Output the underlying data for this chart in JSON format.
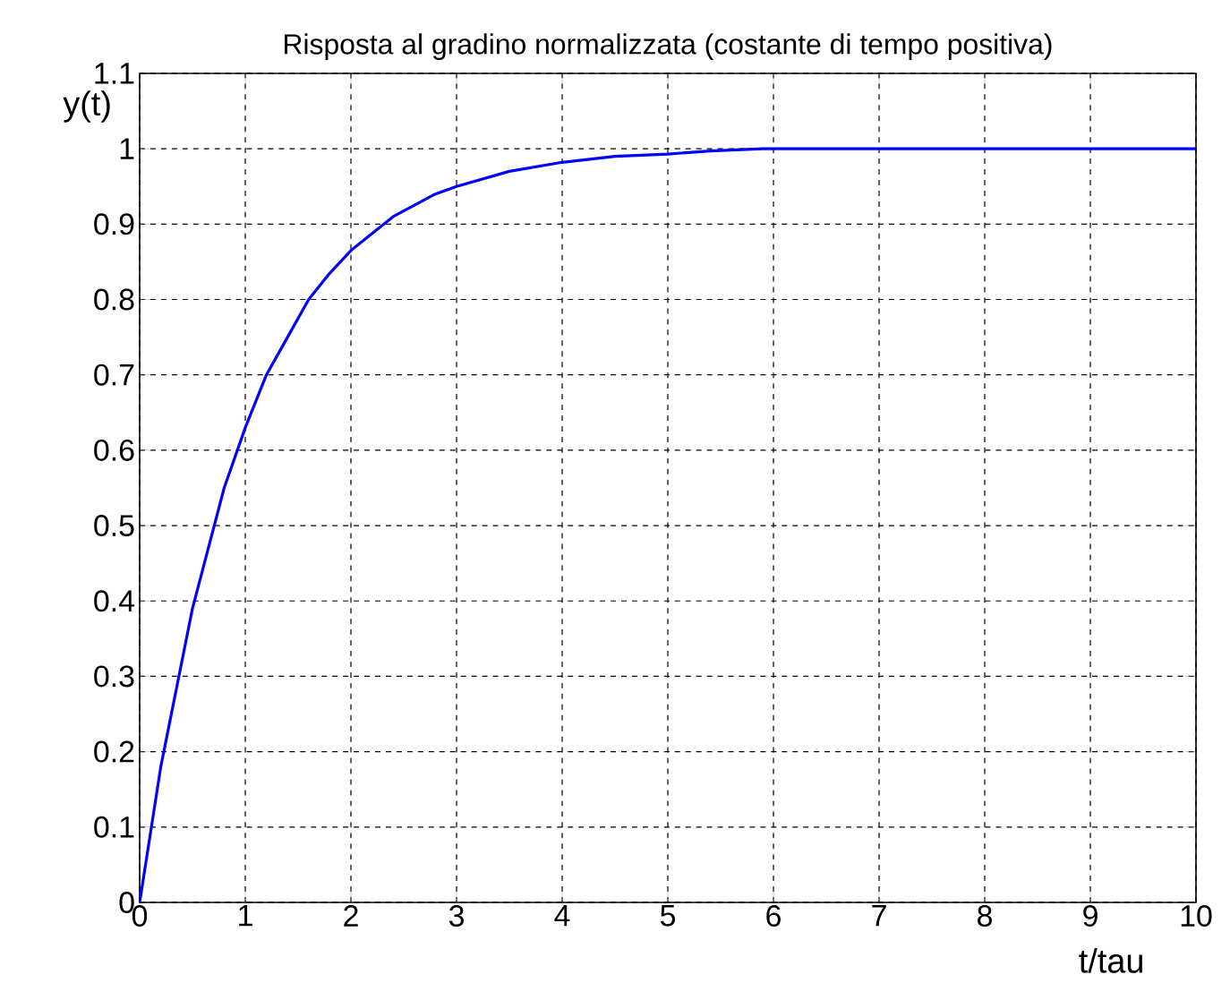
{
  "chart_data": {
    "type": "line",
    "title": "Risposta al gradino normalizzata (costante di tempo positiva)",
    "xlabel": "t/tau",
    "ylabel": "y(t)",
    "x": [
      0,
      0.2,
      0.5,
      0.8,
      1.0,
      1.2,
      1.4,
      1.6,
      1.8,
      2.0,
      2.4,
      2.8,
      3.0,
      3.5,
      4.0,
      4.5,
      5.0,
      5.4,
      5.9,
      10
    ],
    "series": [
      {
        "color": "#0000ff",
        "values": [
          0,
          0.18,
          0.39,
          0.55,
          0.63,
          0.7,
          0.75,
          0.8,
          0.835,
          0.865,
          0.91,
          0.94,
          0.95,
          0.97,
          0.982,
          0.99,
          0.993,
          0.997,
          1.0,
          1.0
        ]
      }
    ],
    "xlim": [
      0,
      10
    ],
    "ylim": [
      0,
      1.1
    ],
    "xticks": [
      0,
      1,
      2,
      3,
      4,
      5,
      6,
      7,
      8,
      9,
      10
    ],
    "yticks": [
      0,
      0.1,
      0.2,
      0.3,
      0.4,
      0.5,
      0.6,
      0.7,
      0.8,
      0.9,
      1,
      1.1
    ],
    "grid": true
  }
}
